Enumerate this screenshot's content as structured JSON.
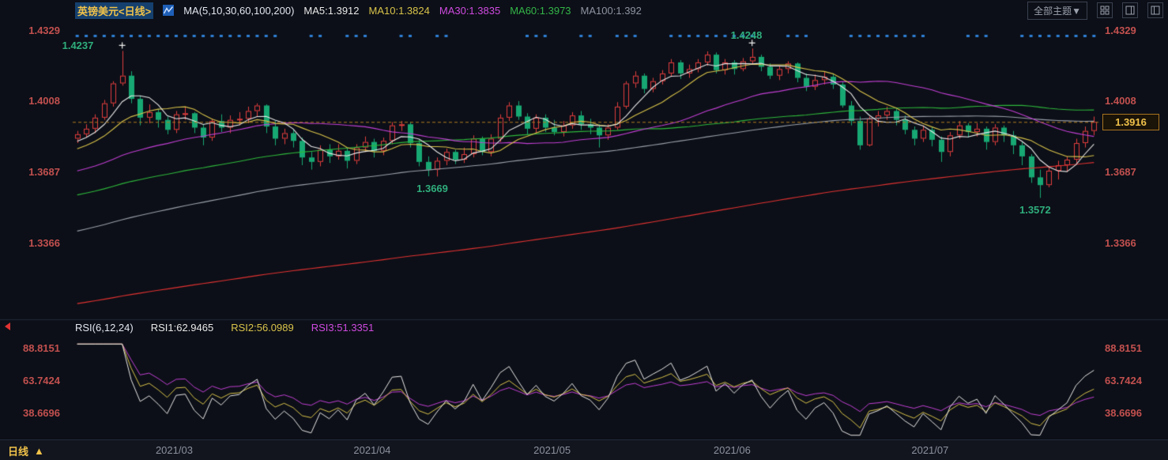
{
  "header": {
    "title": "英镑美元<日线>",
    "ma_group_label": "MA(5,10,30,60,100,200)",
    "ma_labels": [
      {
        "text": "MA5:1.3912",
        "color": "#e8e8e8"
      },
      {
        "text": "MA10:1.3824",
        "color": "#d9c34a"
      },
      {
        "text": "MA30:1.3835",
        "color": "#cf4ae0"
      },
      {
        "text": "MA60:1.3973",
        "color": "#33b548"
      },
      {
        "text": "MA100:1.392",
        "color": "#8d93a0"
      }
    ],
    "theme_dropdown": "全部主题▼"
  },
  "rsi": {
    "param_label": "RSI(6,12,24)",
    "values": [
      {
        "text": "RSI1:62.9465",
        "color": "#e8e8e8"
      },
      {
        "text": "RSI2:56.0989",
        "color": "#d9c34a"
      },
      {
        "text": "RSI3:51.3351",
        "color": "#cf4ae0"
      }
    ]
  },
  "footer": {
    "period_tab": "日线",
    "period_arrow": "▲"
  },
  "colors": {
    "bg": "#0c0f17",
    "footer_bg": "#12151e",
    "divider": "#232a3a",
    "up": "#e23e3e",
    "down": "#17a873",
    "ma5": "#e8e8e8",
    "ma10": "#d9c34a",
    "ma30": "#c13fd4",
    "ma60": "#2eb83c",
    "ma100": "#9aa1ab",
    "ma200": "#e03232",
    "axis_text": "#c2504f",
    "date_text": "#8b919d",
    "anno_green": "#2fae7d",
    "event_dot": "#2e7fd6",
    "last_price_line": "#b07c20",
    "badge_text": "#f0c24a",
    "badge_border": "#a8741f",
    "badge_bg": "#1a1308",
    "title_text": "#f0c24a",
    "title_bg": "#15406e",
    "header_text": "#d8dce4",
    "control_border": "#3a4150",
    "control_text": "#9aa0ac",
    "rsi1": "#e8e8e8",
    "rsi2": "#d9c34a",
    "rsi3": "#c13fd4",
    "cross": "#f0f0f0"
  },
  "chart_data": {
    "type": "candlestick",
    "title": "英镑美元<日线>",
    "period": "日线",
    "last_price": "1.3916",
    "price_range": [
      1.303,
      1.436
    ],
    "rsi_range": [
      20,
      94
    ],
    "y_ticks": [
      1.4329,
      1.4008,
      1.3687,
      1.3366
    ],
    "rsi_ticks": [
      88.8151,
      63.7424,
      38.6696
    ],
    "x_ticks": [
      {
        "label": "2021/03",
        "index": 11
      },
      {
        "label": "2021/04",
        "index": 33
      },
      {
        "label": "2021/05",
        "index": 53
      },
      {
        "label": "2021/06",
        "index": 73
      },
      {
        "label": "2021/07",
        "index": 95
      }
    ],
    "annotations": [
      {
        "text": "1.4237",
        "candle": 5,
        "type": "high",
        "side": "left"
      },
      {
        "text": "1.4248",
        "candle": 75,
        "type": "high",
        "side": "above"
      },
      {
        "text": "1.3669",
        "candle": 40,
        "type": "low",
        "side": "below"
      },
      {
        "text": "1.3572",
        "candle": 107,
        "type": "low",
        "side": "below"
      }
    ],
    "ma_periods": [
      5,
      10,
      30,
      60,
      100,
      200
    ],
    "rsi_periods": [
      6,
      12,
      24
    ],
    "history_anchors": [
      [
        0,
        1.262
      ],
      [
        30,
        1.28
      ],
      [
        60,
        1.272
      ],
      [
        90,
        1.284
      ],
      [
        110,
        1.305
      ],
      [
        130,
        1.33
      ],
      [
        150,
        1.345
      ],
      [
        170,
        1.356
      ],
      [
        190,
        1.372
      ],
      [
        199,
        1.384
      ]
    ],
    "event_dot_indices": [
      0,
      1,
      2,
      3,
      4,
      5,
      6,
      7,
      8,
      9,
      10,
      11,
      12,
      13,
      14,
      15,
      16,
      17,
      18,
      19,
      20,
      21,
      22,
      26,
      27,
      30,
      31,
      32,
      36,
      37,
      40,
      41,
      50,
      51,
      52,
      56,
      57,
      60,
      61,
      62,
      66,
      67,
      68,
      69,
      70,
      71,
      72,
      73,
      74,
      75,
      79,
      80,
      81,
      86,
      87,
      88,
      89,
      90,
      91,
      92,
      93,
      94,
      99,
      100,
      101,
      105,
      106,
      107,
      108,
      109,
      110,
      111,
      112,
      113
    ],
    "candles": [
      [
        1.384,
        1.3875,
        1.382,
        1.386
      ],
      [
        1.386,
        1.3905,
        1.3845,
        1.3885
      ],
      [
        1.3885,
        1.395,
        1.3865,
        1.3935
      ],
      [
        1.3935,
        1.4015,
        1.3925,
        1.4
      ],
      [
        1.4,
        1.41,
        1.3985,
        1.409
      ],
      [
        1.409,
        1.4237,
        1.408,
        1.4125
      ],
      [
        1.4125,
        1.4145,
        1.4,
        1.402
      ],
      [
        1.402,
        1.4035,
        1.39,
        1.3935
      ],
      [
        1.3935,
        1.3995,
        1.391,
        1.396
      ],
      [
        1.396,
        1.3975,
        1.389,
        1.3925
      ],
      [
        1.3925,
        1.394,
        1.386,
        1.388
      ],
      [
        1.388,
        1.3965,
        1.3865,
        1.395
      ],
      [
        1.395,
        1.3985,
        1.3925,
        1.3955
      ],
      [
        1.3955,
        1.396,
        1.3865,
        1.389
      ],
      [
        1.389,
        1.3905,
        1.381,
        1.3845
      ],
      [
        1.3845,
        1.393,
        1.383,
        1.392
      ],
      [
        1.392,
        1.395,
        1.387,
        1.389
      ],
      [
        1.389,
        1.3945,
        1.3865,
        1.3925
      ],
      [
        1.3925,
        1.396,
        1.39,
        1.393
      ],
      [
        1.393,
        1.3985,
        1.391,
        1.3965
      ],
      [
        1.3965,
        1.4,
        1.394,
        1.399
      ],
      [
        1.399,
        1.3995,
        1.3865,
        1.3895
      ],
      [
        1.3895,
        1.392,
        1.381,
        1.384
      ],
      [
        1.384,
        1.3885,
        1.3815,
        1.3865
      ],
      [
        1.3865,
        1.388,
        1.38,
        1.383
      ],
      [
        1.383,
        1.3845,
        1.372,
        1.3755
      ],
      [
        1.3755,
        1.378,
        1.37,
        1.3735
      ],
      [
        1.3735,
        1.381,
        1.3715,
        1.379
      ],
      [
        1.379,
        1.3815,
        1.373,
        1.376
      ],
      [
        1.376,
        1.3815,
        1.3745,
        1.3785
      ],
      [
        1.3785,
        1.3795,
        1.3705,
        1.374
      ],
      [
        1.374,
        1.3815,
        1.3725,
        1.38
      ],
      [
        1.38,
        1.385,
        1.378,
        1.3825
      ],
      [
        1.3825,
        1.384,
        1.3755,
        1.3785
      ],
      [
        1.3785,
        1.3845,
        1.3765,
        1.383
      ],
      [
        1.383,
        1.3915,
        1.3815,
        1.39
      ],
      [
        1.39,
        1.392,
        1.3875,
        1.3905
      ],
      [
        1.3905,
        1.3915,
        1.38,
        1.382
      ],
      [
        1.382,
        1.3835,
        1.3715,
        1.3735
      ],
      [
        1.3735,
        1.376,
        1.367,
        1.37
      ],
      [
        1.37,
        1.3755,
        1.3669,
        1.374
      ],
      [
        1.374,
        1.3795,
        1.372,
        1.378
      ],
      [
        1.378,
        1.379,
        1.3725,
        1.3745
      ],
      [
        1.3745,
        1.38,
        1.373,
        1.377
      ],
      [
        1.377,
        1.3855,
        1.3755,
        1.384
      ],
      [
        1.384,
        1.385,
        1.3765,
        1.378
      ],
      [
        1.378,
        1.386,
        1.376,
        1.384
      ],
      [
        1.384,
        1.395,
        1.3825,
        1.3935
      ],
      [
        1.3935,
        1.4005,
        1.392,
        1.399
      ],
      [
        1.399,
        1.401,
        1.3925,
        1.394
      ],
      [
        1.394,
        1.3955,
        1.386,
        1.3885
      ],
      [
        1.3885,
        1.395,
        1.3865,
        1.3935
      ],
      [
        1.3935,
        1.395,
        1.387,
        1.389
      ],
      [
        1.389,
        1.3925,
        1.3855,
        1.387
      ],
      [
        1.387,
        1.392,
        1.385,
        1.39
      ],
      [
        1.39,
        1.396,
        1.3885,
        1.3945
      ],
      [
        1.3945,
        1.3965,
        1.388,
        1.3905
      ],
      [
        1.3905,
        1.393,
        1.386,
        1.389
      ],
      [
        1.389,
        1.3905,
        1.38,
        1.3855
      ],
      [
        1.3855,
        1.3905,
        1.3835,
        1.389
      ],
      [
        1.389,
        1.4005,
        1.388,
        1.3985
      ],
      [
        1.3985,
        1.41,
        1.3975,
        1.409
      ],
      [
        1.409,
        1.4145,
        1.407,
        1.4125
      ],
      [
        1.4125,
        1.4135,
        1.4045,
        1.4065
      ],
      [
        1.4065,
        1.4115,
        1.405,
        1.41
      ],
      [
        1.41,
        1.415,
        1.4085,
        1.4135
      ],
      [
        1.4135,
        1.42,
        1.412,
        1.4185
      ],
      [
        1.4185,
        1.4195,
        1.411,
        1.4135
      ],
      [
        1.4135,
        1.4175,
        1.4115,
        1.4155
      ],
      [
        1.4155,
        1.42,
        1.414,
        1.4185
      ],
      [
        1.4185,
        1.4235,
        1.417,
        1.422
      ],
      [
        1.422,
        1.423,
        1.4135,
        1.415
      ],
      [
        1.415,
        1.42,
        1.413,
        1.4185
      ],
      [
        1.4185,
        1.4195,
        1.413,
        1.4155
      ],
      [
        1.4155,
        1.4205,
        1.4145,
        1.419
      ],
      [
        1.419,
        1.4248,
        1.4175,
        1.421
      ],
      [
        1.421,
        1.422,
        1.4145,
        1.4165
      ],
      [
        1.4165,
        1.418,
        1.411,
        1.4125
      ],
      [
        1.4125,
        1.417,
        1.4105,
        1.4155
      ],
      [
        1.4155,
        1.419,
        1.4135,
        1.418
      ],
      [
        1.418,
        1.4185,
        1.4095,
        1.4115
      ],
      [
        1.4115,
        1.4135,
        1.4055,
        1.4075
      ],
      [
        1.4075,
        1.413,
        1.406,
        1.4105
      ],
      [
        1.4105,
        1.4145,
        1.4085,
        1.412
      ],
      [
        1.412,
        1.4135,
        1.4065,
        1.4085
      ],
      [
        1.4085,
        1.4095,
        1.398,
        1.399
      ],
      [
        1.399,
        1.401,
        1.39,
        1.392
      ],
      [
        1.392,
        1.394,
        1.379,
        1.381
      ],
      [
        1.381,
        1.394,
        1.3805,
        1.393
      ],
      [
        1.393,
        1.3965,
        1.3895,
        1.3945
      ],
      [
        1.3945,
        1.3985,
        1.3925,
        1.3965
      ],
      [
        1.3965,
        1.3975,
        1.39,
        1.3925
      ],
      [
        1.3925,
        1.3945,
        1.386,
        1.388
      ],
      [
        1.388,
        1.3895,
        1.381,
        1.384
      ],
      [
        1.384,
        1.39,
        1.3825,
        1.388
      ],
      [
        1.388,
        1.3895,
        1.3805,
        1.3835
      ],
      [
        1.3835,
        1.385,
        1.3735,
        1.378
      ],
      [
        1.378,
        1.387,
        1.376,
        1.3855
      ],
      [
        1.3855,
        1.392,
        1.384,
        1.39
      ],
      [
        1.39,
        1.391,
        1.3845,
        1.387
      ],
      [
        1.387,
        1.391,
        1.385,
        1.3885
      ],
      [
        1.3885,
        1.3895,
        1.379,
        1.3825
      ],
      [
        1.3825,
        1.3905,
        1.381,
        1.389
      ],
      [
        1.389,
        1.39,
        1.3825,
        1.3855
      ],
      [
        1.3855,
        1.3875,
        1.377,
        1.381
      ],
      [
        1.381,
        1.3825,
        1.372,
        1.376
      ],
      [
        1.376,
        1.377,
        1.364,
        1.3665
      ],
      [
        1.3665,
        1.37,
        1.3572,
        1.363
      ],
      [
        1.363,
        1.371,
        1.362,
        1.3695
      ],
      [
        1.3695,
        1.374,
        1.3655,
        1.372
      ],
      [
        1.372,
        1.376,
        1.369,
        1.3745
      ],
      [
        1.3745,
        1.384,
        1.373,
        1.382
      ],
      [
        1.382,
        1.3895,
        1.38,
        1.3875
      ],
      [
        1.3875,
        1.394,
        1.3855,
        1.3916
      ]
    ]
  }
}
